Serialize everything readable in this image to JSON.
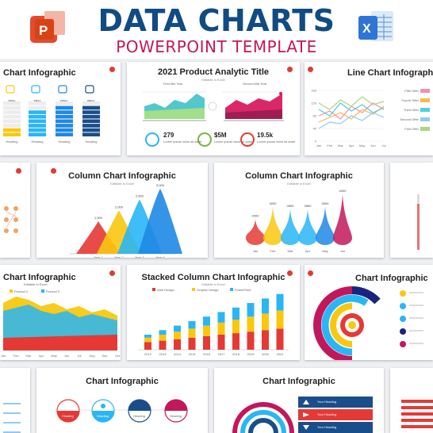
{
  "header": {
    "title": "DATA CHARTS",
    "subtitle": "POWERPOINT TEMPLATE",
    "ppt_icon": "powerpoint-icon",
    "excel_icon": "excel-icon"
  },
  "slides": {
    "r1c1": {
      "title": "Chart Infographic",
      "percents": [
        "30%",
        "75%",
        "90%",
        "85%"
      ],
      "labels": [
        "Heading",
        "Heading",
        "Heading",
        "Heading"
      ]
    },
    "r1c2": {
      "title": "2021 Product Analytic Title",
      "sub": "Editable in Excel",
      "half_labels": [
        "First Mid Year",
        "Second Mid Year"
      ],
      "kpis": [
        {
          "value": "279",
          "text": "Lorem ipsum dolor sit amet"
        },
        {
          "value": "$5M",
          "text": "Lorem ipsum dolor sit amet"
        },
        {
          "value": "19.5k",
          "text": "Lorem ipsum dolor sit amet"
        }
      ]
    },
    "r1c3": {
      "title": "Line Chart Infograph",
      "legend": [
        "Fifth Offer",
        "Fourth Offer",
        "Third Offer",
        "Second Offer",
        "First Offer"
      ]
    },
    "r2c2": {
      "title": "Column Chart Infographic",
      "sub": "Editable in Excel"
    },
    "r2c3": {
      "title": "Column Chart Infographic",
      "sub": "Editable in Excel"
    },
    "r3c1": {
      "title": "Chart Infographic",
      "sub": "Editable in Excel",
      "legend": [
        "Product 2",
        "Product 3"
      ]
    },
    "r3c2": {
      "title": "Stacked Column Chart Infographic",
      "sub": "Editable in Excel",
      "legend": [
        "Web Design",
        "Graphic Design",
        "PowerPoint"
      ]
    },
    "r3c3": {
      "title": "Chart Infographic"
    },
    "r4c2": {
      "title": "Chart Infographic",
      "labels": [
        "Heading",
        "Heading",
        "Heading",
        "Heading"
      ]
    },
    "r4c3": {
      "title": "Chart Infographic",
      "rows": [
        "Your Heading",
        "Your Heading",
        "Your Heading",
        "Your Heading"
      ]
    }
  },
  "chart_data": [
    {
      "type": "bar",
      "slide": "r1c1",
      "categories": [
        "Heading",
        "Heading",
        "Heading",
        "Heading"
      ],
      "values": [
        30,
        75,
        90,
        85
      ],
      "ylim": [
        0,
        100
      ]
    },
    {
      "type": "area",
      "slide": "r1c2",
      "series": [
        {
          "name": "First Mid Year",
          "values": [
            170,
            185,
            175,
            200,
            190,
            215
          ]
        },
        {
          "name": "Second Mid Year",
          "values": [
            180,
            200,
            190,
            210,
            195,
            220
          ]
        }
      ]
    },
    {
      "type": "line",
      "slide": "r1c3",
      "ylim": [
        0,
        160
      ],
      "y_ticks": [
        "160",
        "120",
        "80",
        "40",
        "0"
      ],
      "x": [
        "Jan",
        "Feb",
        "Mar",
        "Apr",
        "May",
        "Jun",
        "Jul"
      ],
      "series": [
        {
          "name": "Fifth Offer",
          "values": [
            80,
            95,
            70,
            110,
            90,
            120,
            100
          ]
        },
        {
          "name": "Fourth Offer",
          "values": [
            60,
            75,
            90,
            70,
            100,
            85,
            110
          ]
        },
        {
          "name": "Third Offer",
          "values": [
            100,
            80,
            120,
            95,
            115,
            90,
            105
          ]
        },
        {
          "name": "Second Offer",
          "values": [
            40,
            60,
            55,
            80,
            65,
            90,
            75
          ]
        },
        {
          "name": "First Offer",
          "values": [
            120,
            100,
            130,
            110,
            140,
            115,
            125
          ]
        }
      ]
    },
    {
      "type": "bar",
      "slide": "r2c2",
      "categories": [
        "Item 1",
        "Item 2",
        "Item 3",
        "Item 4"
      ],
      "values": [
        1500,
        2000,
        2500,
        3000
      ],
      "value_labels": [
        "1,500",
        "2,000",
        "2,500",
        "3,000"
      ],
      "ylim": [
        0,
        3000
      ]
    },
    {
      "type": "bar",
      "slide": "r2c3",
      "categories": [
        "Jan",
        "Feb",
        "Mar",
        "Apr",
        "May",
        "Jun"
      ],
      "values": [
        2000,
        3000,
        2800,
        2800,
        3000,
        4000
      ],
      "value_labels": [
        "2000",
        "3000",
        "2800",
        "2800",
        "3000",
        "4000"
      ],
      "ylim": [
        0,
        4000
      ]
    },
    {
      "type": "area",
      "slide": "r3c1",
      "x": [
        "Jan",
        "Feb",
        "Mar",
        "Apr",
        "May",
        "Jun",
        "Jul",
        "Aug",
        "Sep",
        "Oct"
      ],
      "series": [
        {
          "name": "Product 2",
          "values": [
            50,
            60,
            55,
            45,
            50,
            40,
            45,
            35,
            40,
            30
          ]
        },
        {
          "name": "Product 3",
          "values": [
            30,
            35,
            40,
            30,
            25,
            30,
            20,
            25,
            20,
            15
          ]
        }
      ]
    },
    {
      "type": "bar",
      "slide": "r3c2",
      "categories": [
        "2012",
        "2013",
        "2014",
        "2015",
        "2016",
        "2017",
        "2018",
        "2019",
        "2020",
        "2021"
      ],
      "series": [
        {
          "name": "Web Design",
          "values": [
            10,
            12,
            14,
            16,
            18,
            20,
            22,
            24,
            26,
            28
          ]
        },
        {
          "name": "Graphic Design",
          "values": [
            6,
            8,
            10,
            12,
            14,
            16,
            18,
            20,
            22,
            24
          ]
        },
        {
          "name": "PowerPoint",
          "values": [
            4,
            6,
            8,
            10,
            12,
            14,
            16,
            18,
            20,
            22
          ]
        }
      ]
    }
  ]
}
